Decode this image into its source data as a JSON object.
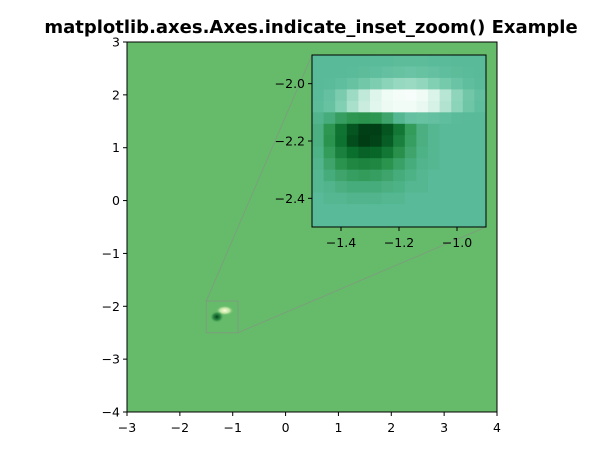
{
  "chart_data": {
    "type": "heatmap",
    "title": "matplotlib.axes.Axes.indicate_inset_zoom() Example",
    "xlabel": "",
    "ylabel": "",
    "xlim": [
      -3,
      4
    ],
    "ylim": [
      -4,
      3
    ],
    "xticks": [
      "−3",
      "−2",
      "−1",
      "0",
      "1",
      "2",
      "3",
      "4"
    ],
    "yticks": [
      "3",
      "2",
      "1",
      "0",
      "−1",
      "−2",
      "−3",
      "−4"
    ],
    "colormap": "Greens-like diverging (dark green → light green → white/yellow)",
    "background_value_color": "#66bb6a",
    "feature": {
      "description": "bright ridge above a dark trough",
      "bright_center": [
        -1.15,
        -2.08
      ],
      "dark_center": [
        -1.3,
        -2.2
      ]
    },
    "indicated_region": {
      "xlim": [
        -1.5,
        -0.9
      ],
      "ylim": [
        -2.5,
        -1.9
      ]
    },
    "inset": {
      "xlim": [
        -1.5,
        -0.9
      ],
      "ylim": [
        -2.5,
        -1.9
      ],
      "xticks": [
        "−1.4",
        "−1.2",
        "−1.0"
      ],
      "yticks": [
        "−2.0",
        "−2.2",
        "−2.4"
      ],
      "grid_cells": 15,
      "grid_values": [
        [
          0.38,
          0.38,
          0.38,
          0.38,
          0.38,
          0.39,
          0.39,
          0.4,
          0.4,
          0.4,
          0.39,
          0.39,
          0.38,
          0.38,
          0.38
        ],
        [
          0.38,
          0.38,
          0.38,
          0.39,
          0.4,
          0.41,
          0.43,
          0.44,
          0.45,
          0.44,
          0.43,
          0.41,
          0.4,
          0.39,
          0.38
        ],
        [
          0.38,
          0.39,
          0.41,
          0.44,
          0.48,
          0.53,
          0.58,
          0.62,
          0.63,
          0.6,
          0.55,
          0.5,
          0.45,
          0.41,
          0.39
        ],
        [
          0.39,
          0.43,
          0.52,
          0.64,
          0.76,
          0.87,
          0.95,
          0.99,
          1.0,
          0.96,
          0.86,
          0.73,
          0.59,
          0.48,
          0.42
        ],
        [
          0.4,
          0.44,
          0.55,
          0.68,
          0.79,
          0.88,
          0.94,
          0.97,
          0.97,
          0.92,
          0.84,
          0.71,
          0.58,
          0.47,
          0.41
        ],
        [
          0.36,
          0.33,
          0.28,
          0.25,
          0.24,
          0.25,
          0.3,
          0.37,
          0.43,
          0.44,
          0.43,
          0.41,
          0.39,
          0.38,
          0.38
        ],
        [
          0.34,
          0.25,
          0.14,
          0.06,
          0.01,
          0.01,
          0.06,
          0.15,
          0.27,
          0.34,
          0.37,
          0.38,
          0.38,
          0.38,
          0.38
        ],
        [
          0.34,
          0.24,
          0.13,
          0.04,
          0.0,
          0.02,
          0.08,
          0.18,
          0.28,
          0.34,
          0.37,
          0.38,
          0.38,
          0.38,
          0.38
        ],
        [
          0.35,
          0.27,
          0.18,
          0.12,
          0.09,
          0.1,
          0.15,
          0.23,
          0.3,
          0.35,
          0.37,
          0.38,
          0.38,
          0.38,
          0.38
        ],
        [
          0.36,
          0.3,
          0.24,
          0.2,
          0.19,
          0.2,
          0.24,
          0.29,
          0.33,
          0.36,
          0.37,
          0.38,
          0.38,
          0.38,
          0.38
        ],
        [
          0.37,
          0.33,
          0.3,
          0.28,
          0.27,
          0.28,
          0.3,
          0.33,
          0.35,
          0.37,
          0.38,
          0.38,
          0.38,
          0.38,
          0.38
        ],
        [
          0.37,
          0.36,
          0.34,
          0.33,
          0.33,
          0.33,
          0.34,
          0.35,
          0.37,
          0.37,
          0.38,
          0.38,
          0.38,
          0.38,
          0.38
        ],
        [
          0.38,
          0.37,
          0.37,
          0.36,
          0.36,
          0.36,
          0.37,
          0.37,
          0.38,
          0.38,
          0.38,
          0.38,
          0.38,
          0.38,
          0.38
        ],
        [
          0.38,
          0.38,
          0.38,
          0.38,
          0.38,
          0.38,
          0.38,
          0.38,
          0.38,
          0.38,
          0.38,
          0.38,
          0.38,
          0.38,
          0.38
        ],
        [
          0.38,
          0.38,
          0.38,
          0.38,
          0.38,
          0.38,
          0.38,
          0.38,
          0.38,
          0.38,
          0.38,
          0.38,
          0.38,
          0.38,
          0.38
        ]
      ]
    }
  }
}
